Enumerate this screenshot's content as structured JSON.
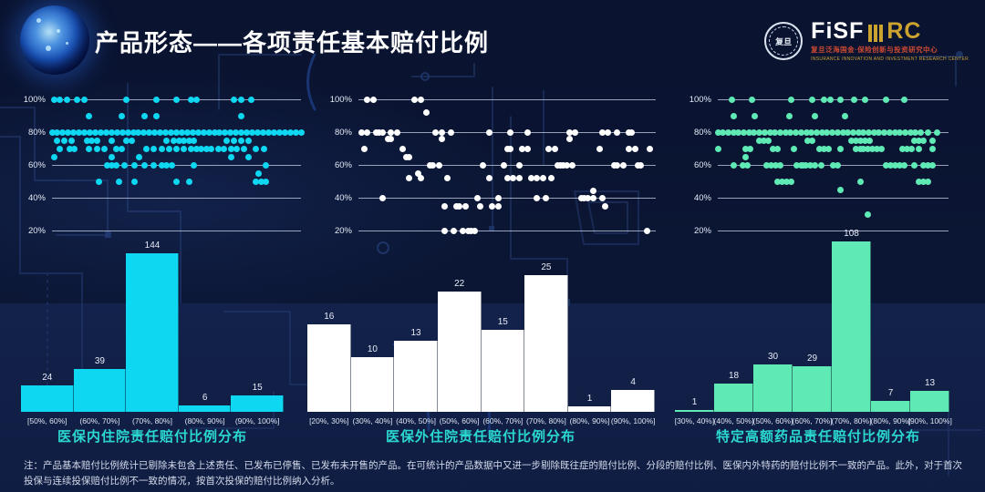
{
  "header": {
    "title": "产品形态——各项责任基本赔付比例",
    "logo": {
      "brand_main": "FiSF",
      "brand_suffix": "RC",
      "org_cn": "复旦泛海国金·保险创新与投资研究中心",
      "org_en": "INSURANCE INNOVATION AND INVESTMENT RESEARCH CENTER",
      "seal_text": "复旦"
    }
  },
  "colors": {
    "background": "#0b1530",
    "cyan_series": "#0ed7f2",
    "white_series": "#ffffff",
    "green_series": "#5fe9b5",
    "chart_title_accent": "#2bd8d0",
    "logo_gold": "#cda32f",
    "logo_red": "#cf4a32"
  },
  "chart_data": [
    {
      "name": "medical-insured-inpatient",
      "title": "医保内住院责任赔付比例分布",
      "color": "#0ed7f2",
      "scatter": {
        "type": "scatter",
        "yticks": [
          "100%",
          "80%",
          "60%",
          "40%",
          "20%"
        ],
        "y_range": [
          20,
          100
        ],
        "rows": [
          {
            "v": 100,
            "x": [
              0.01,
              0.03,
              0.06,
              0.1,
              0.13,
              0.3,
              0.42,
              0.5,
              0.56,
              0.58,
              0.73,
              0.76,
              0.8
            ]
          },
          {
            "v": 90,
            "x": [
              0.15,
              0.28,
              0.37,
              0.42,
              0.76
            ]
          },
          {
            "v": 80,
            "span": [
              0.0,
              1.0
            ],
            "n": 47
          },
          {
            "v": 75,
            "x": [
              0.02,
              0.05,
              0.08,
              0.14,
              0.16,
              0.18,
              0.24,
              0.3,
              0.32,
              0.46,
              0.49,
              0.51,
              0.53,
              0.55,
              0.57,
              0.7,
              0.73,
              0.76,
              0.79
            ]
          },
          {
            "v": 70,
            "x": [
              0.03,
              0.07,
              0.09,
              0.15,
              0.18,
              0.21,
              0.26,
              0.28,
              0.38,
              0.41,
              0.44,
              0.47,
              0.5,
              0.53,
              0.56,
              0.58,
              0.6,
              0.62,
              0.64,
              0.67,
              0.69,
              0.72,
              0.74,
              0.77,
              0.82,
              0.85
            ]
          },
          {
            "v": 65,
            "x": [
              0.01,
              0.24,
              0.35,
              0.72,
              0.79
            ]
          },
          {
            "v": 60,
            "x": [
              0.22,
              0.24,
              0.26,
              0.29,
              0.33,
              0.37,
              0.41,
              0.44,
              0.46,
              0.48,
              0.57,
              0.86
            ]
          },
          {
            "v": 55,
            "x": [
              0.83
            ]
          },
          {
            "v": 50,
            "x": [
              0.19,
              0.27,
              0.33,
              0.5,
              0.55,
              0.82,
              0.84,
              0.86
            ]
          }
        ]
      },
      "histogram": {
        "type": "bar",
        "categories": [
          "[50%, 60%]",
          "(60%, 70%]",
          "(70%, 80%]",
          "(80%, 90%]",
          "(90%, 100%]"
        ],
        "values": [
          24,
          39,
          144,
          6,
          15
        ]
      }
    },
    {
      "name": "non-medical-insured-inpatient",
      "title": "医保外住院责任赔付比例分布",
      "color": "#ffffff",
      "scatter": {
        "type": "scatter",
        "yticks": [
          "100%",
          "80%",
          "60%",
          "40%",
          "20%"
        ],
        "y_range": [
          20,
          100
        ],
        "rows": [
          {
            "v": 100,
            "x": [
              0.03,
              0.05,
              0.19,
              0.21
            ]
          },
          {
            "v": 92,
            "x": [
              0.23
            ]
          },
          {
            "v": 80,
            "x": [
              0.01,
              0.03,
              0.06,
              0.07,
              0.08,
              0.11,
              0.13,
              0.26,
              0.28,
              0.31,
              0.44,
              0.51,
              0.57,
              0.71,
              0.73,
              0.82,
              0.84,
              0.87,
              0.91,
              0.92
            ]
          },
          {
            "v": 76,
            "x": [
              0.1,
              0.11,
              0.28,
              0.71
            ]
          },
          {
            "v": 70,
            "x": [
              0.02,
              0.15,
              0.5,
              0.51,
              0.55,
              0.57,
              0.64,
              0.66,
              0.81,
              0.91,
              0.93,
              0.98
            ]
          },
          {
            "v": 65,
            "x": [
              0.16,
              0.17
            ]
          },
          {
            "v": 60,
            "x": [
              0.24,
              0.25,
              0.27,
              0.42,
              0.49,
              0.54,
              0.67,
              0.68,
              0.69,
              0.7,
              0.72,
              0.86,
              0.87,
              0.89,
              0.94,
              0.95
            ]
          },
          {
            "v": 55,
            "x": [
              0.2
            ]
          },
          {
            "v": 52,
            "x": [
              0.17,
              0.21,
              0.3,
              0.44,
              0.5,
              0.52,
              0.54,
              0.58,
              0.6,
              0.62,
              0.65
            ]
          },
          {
            "v": 44,
            "x": [
              0.79
            ]
          },
          {
            "v": 40,
            "x": [
              0.08,
              0.4,
              0.47,
              0.6,
              0.63,
              0.75,
              0.76,
              0.77,
              0.79,
              0.82
            ]
          },
          {
            "v": 35,
            "x": [
              0.29,
              0.33,
              0.34,
              0.36,
              0.41,
              0.45,
              0.47,
              0.83
            ]
          },
          {
            "v": 20,
            "x": [
              0.29,
              0.32,
              0.35,
              0.37,
              0.38,
              0.39,
              0.97
            ]
          }
        ]
      },
      "histogram": {
        "type": "bar",
        "categories": [
          "[20%, 30%]",
          "(30%, 40%]",
          "(40%, 50%]",
          "(50%, 60%]",
          "(60%, 70%]",
          "(70%, 80%]",
          "(80%, 90%]",
          "(90%, 100%]"
        ],
        "values": [
          16,
          10,
          13,
          22,
          15,
          25,
          1,
          4
        ]
      }
    },
    {
      "name": "specified-high-cost-drug",
      "title": "特定高额药品责任赔付比例分布",
      "color": "#5fe9b5",
      "scatter": {
        "type": "scatter",
        "yticks": [
          "100%",
          "80%",
          "60%",
          "40%",
          "20%"
        ],
        "y_range": [
          20,
          100
        ],
        "rows": [
          {
            "v": 100,
            "x": [
              0.06,
              0.15,
              0.32,
              0.41,
              0.46,
              0.49,
              0.53,
              0.59,
              0.64,
              0.73,
              0.81
            ]
          },
          {
            "v": 90,
            "x": [
              0.07,
              0.16,
              0.31,
              0.42,
              0.55
            ]
          },
          {
            "v": 80,
            "span": [
              0.0,
              0.88
            ],
            "n": 40,
            "x": [
              0.91,
              0.95
            ]
          },
          {
            "v": 75,
            "x": [
              0.18,
              0.2,
              0.22,
              0.39,
              0.41,
              0.58,
              0.6,
              0.62,
              0.64,
              0.66,
              0.85,
              0.87,
              0.89,
              0.93
            ]
          },
          {
            "v": 70,
            "x": [
              0.0,
              0.12,
              0.14,
              0.24,
              0.26,
              0.33,
              0.44,
              0.46,
              0.48,
              0.53,
              0.6,
              0.62,
              0.63,
              0.65,
              0.67,
              0.69,
              0.71,
              0.8,
              0.82,
              0.84,
              0.87,
              0.93
            ]
          },
          {
            "v": 65,
            "x": [
              0.12
            ]
          },
          {
            "v": 60,
            "x": [
              0.07,
              0.11,
              0.13,
              0.21,
              0.23,
              0.25,
              0.27,
              0.34,
              0.36,
              0.37,
              0.38,
              0.4,
              0.42,
              0.45,
              0.5,
              0.52,
              0.73,
              0.75,
              0.77,
              0.79,
              0.81,
              0.85,
              0.89,
              0.91,
              0.93
            ]
          },
          {
            "v": 50,
            "x": [
              0.26,
              0.28,
              0.3,
              0.32,
              0.62,
              0.87,
              0.89,
              0.91
            ]
          },
          {
            "v": 45,
            "x": [
              0.53
            ]
          },
          {
            "v": 30,
            "x": [
              0.65
            ]
          }
        ]
      },
      "histogram": {
        "type": "bar",
        "categories": [
          "[30%, 40%]",
          "(40%, 50%]",
          "(50%, 60%]",
          "(60%, 70%]",
          "(70%, 80%]",
          "(80%, 90%]",
          "(90%, 100%]"
        ],
        "values": [
          1,
          18,
          30,
          29,
          108,
          7,
          13
        ]
      }
    }
  ],
  "footnote": "注：产品基本赔付比例统计已剔除未包含上述责任、已发布已停售、已发布未开售的产品。在可统计的产品数据中又进一步剔除既往症的赔付比例、分段的赔付比例、医保内外特药的赔付比例不一致的产品。此外，对于首次投保与连续投保赔付比例不一致的情况，按首次投保的赔付比例纳入分析。"
}
